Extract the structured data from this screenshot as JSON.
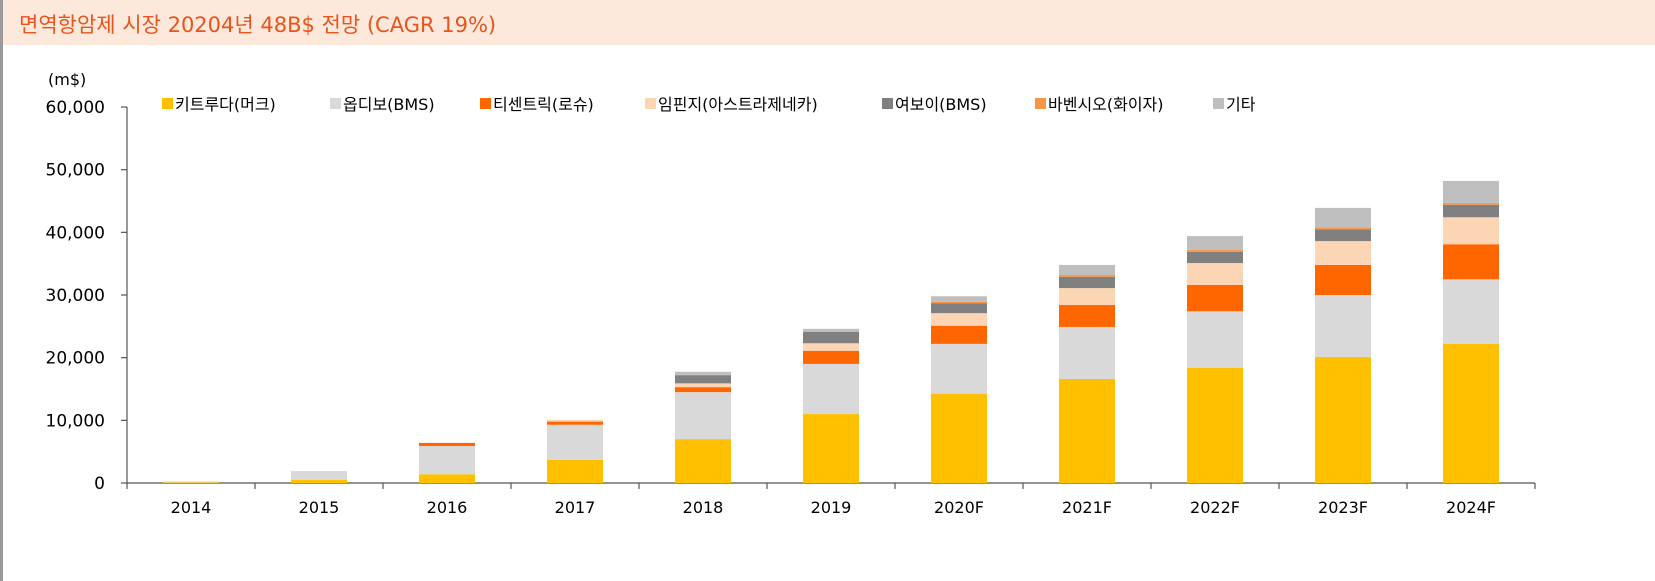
{
  "header": {
    "title": "면역항암제 시장 20204년 48B$ 전망 (CAGR 19%)"
  },
  "chart_data": {
    "type": "bar",
    "stacked": true,
    "unit_label": "(m$)",
    "categories": [
      "2014",
      "2015",
      "2016",
      "2017",
      "2018",
      "2019",
      "2020F",
      "2021F",
      "2022F",
      "2023F",
      "2024F"
    ],
    "ylim": [
      0,
      60000
    ],
    "yticks": [
      0,
      10000,
      20000,
      30000,
      40000,
      50000,
      60000
    ],
    "ytick_labels": [
      "0",
      "10,000",
      "20,000",
      "30,000",
      "40,000",
      "50,000",
      "60,000"
    ],
    "grid": false,
    "legend_placement": "top",
    "series": [
      {
        "name": "키트루다(머크)",
        "color": "#FFC000",
        "values": [
          100,
          500,
          1400,
          3700,
          7000,
          11000,
          14200,
          16600,
          18400,
          20100,
          22200
        ]
      },
      {
        "name": "옵디보(BMS)",
        "color": "#D9D9D9",
        "values": [
          150,
          1400,
          4500,
          5600,
          7500,
          8000,
          8000,
          8300,
          9000,
          9900,
          10300
        ]
      },
      {
        "name": "티센트릭(로슈)",
        "color": "#FF6600",
        "values": [
          0,
          0,
          500,
          500,
          800,
          2100,
          2900,
          3500,
          4200,
          4800,
          5600
        ]
      },
      {
        "name": "임핀지(아스트라제네카)",
        "color": "#FCD5B5",
        "values": [
          0,
          0,
          0,
          300,
          600,
          1200,
          2000,
          2700,
          3500,
          3800,
          4300
        ]
      },
      {
        "name": "여보이(BMS)",
        "color": "#808080",
        "values": [
          0,
          0,
          0,
          0,
          1300,
          1800,
          1600,
          1800,
          1800,
          1900,
          2000
        ]
      },
      {
        "name": "바벤시오(화이자)",
        "color": "#F79646",
        "values": [
          0,
          0,
          0,
          0,
          50,
          100,
          200,
          300,
          300,
          300,
          300
        ]
      },
      {
        "name": "기타",
        "color": "#BFBFBF",
        "values": [
          0,
          0,
          0,
          0,
          500,
          400,
          900,
          1600,
          2200,
          3100,
          3500
        ]
      }
    ]
  }
}
